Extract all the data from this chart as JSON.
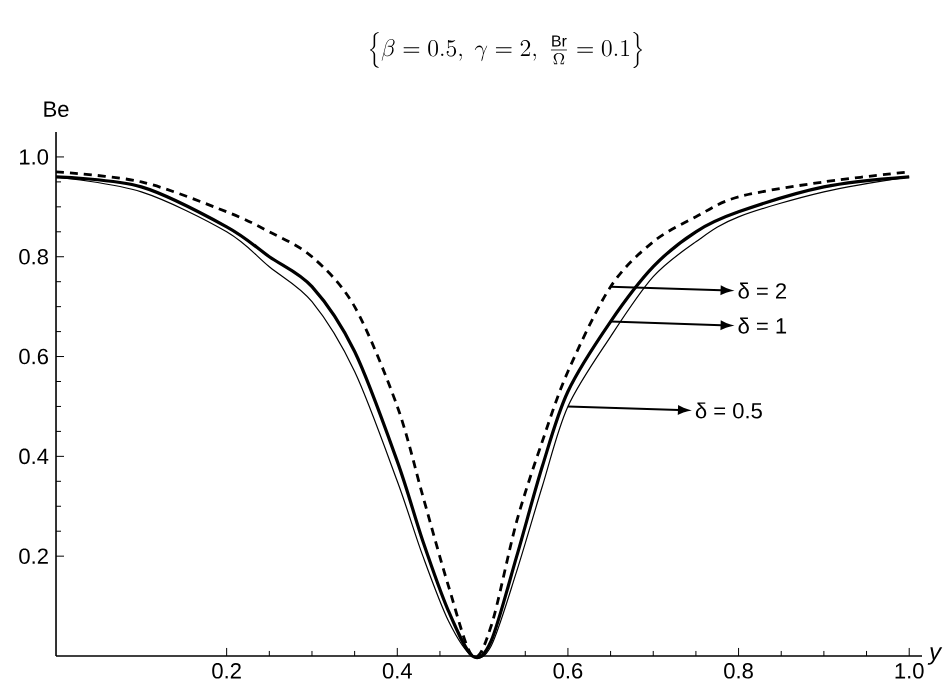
{
  "chart_data": {
    "type": "line",
    "title": "\\left\\{\\beta = 0.5,\\ \\gamma = 2,\\ \\frac{\\mathrm{Br}}{\\Omega} = 0.1\\right\\}",
    "xlabel": "y",
    "ylabel": "Be",
    "x": [
      0,
      0.1,
      0.2,
      0.25,
      0.3,
      0.35,
      0.4,
      0.43,
      0.46,
      0.488,
      0.51,
      0.54,
      0.57,
      0.6,
      0.65,
      0.7,
      0.75,
      0.8,
      0.9,
      1.0
    ],
    "series": [
      {
        "name": "δ = 2",
        "color": "#000000",
        "line_style": "dashed",
        "values": [
          0.97,
          0.95,
          0.89,
          0.85,
          0.8,
          0.7,
          0.5,
          0.32,
          0.14,
          0,
          0.06,
          0.27,
          0.43,
          0.57,
          0.74,
          0.83,
          0.88,
          0.92,
          0.95,
          0.97
        ]
      },
      {
        "name": "δ = 1",
        "color": "#000000",
        "line_style": "solid",
        "values": [
          0.96,
          0.94,
          0.86,
          0.8,
          0.74,
          0.61,
          0.39,
          0.23,
          0.09,
          0,
          0.03,
          0.2,
          0.38,
          0.53,
          0.67,
          0.78,
          0.85,
          0.89,
          0.94,
          0.96
        ]
      },
      {
        "name": "δ = 0.5",
        "color": "#000000",
        "line_style": "solid",
        "values": [
          0.96,
          0.93,
          0.85,
          0.78,
          0.71,
          0.57,
          0.35,
          0.2,
          0.07,
          0,
          0.02,
          0.17,
          0.34,
          0.5,
          0.64,
          0.76,
          0.83,
          0.88,
          0.93,
          0.96
        ]
      }
    ],
    "xlim": [
      0,
      1.015
    ],
    "ylim": [
      0,
      1.05
    ],
    "xticks": [
      0.2,
      0.4,
      0.6,
      0.8,
      {
        "value": 1,
        "label": "1.0"
      }
    ],
    "yticks": [
      0.2,
      0.4,
      0.6,
      0.8,
      {
        "value": 1,
        "label": "1.0"
      }
    ],
    "grid": false,
    "legend": "right",
    "marker": "none"
  }
}
